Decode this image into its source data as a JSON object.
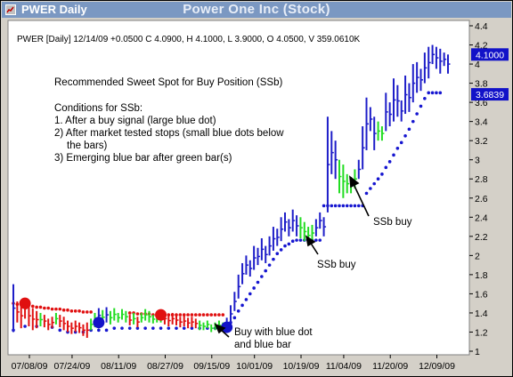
{
  "window": {
    "title": "PWER Daily"
  },
  "chart_data": {
    "type": "ohlc",
    "title": "Power One Inc (Stock)",
    "info_line": "PWER [Daily] 12/14/09 +0.0500 C 4.0900, H 4.1000, L 3.9000, O 4.0500, V 359.0610K",
    "ylim": [
      1.0,
      4.4
    ],
    "y_ticks": [
      1,
      1.2,
      1.4,
      1.6,
      1.8,
      2,
      2.2,
      2.4,
      2.6,
      2.8,
      3,
      3.2,
      3.4,
      3.6,
      3.8,
      4,
      4.2,
      4.4
    ],
    "x_ticks": [
      "07/08/09",
      "07/24/09",
      "08/11/09",
      "08/27/09",
      "09/15/09",
      "10/01/09",
      "10/19/09",
      "11/04/09",
      "11/20/09",
      "12/09/09"
    ],
    "price_badges": [
      "4.1000",
      "3.6839"
    ],
    "price_badge_values": [
      4.1,
      3.6839
    ],
    "colors": {
      "blue": "#1e1ec8",
      "green": "#22dd22",
      "red": "#e01010",
      "dots": "#1616d0",
      "badge": "#1212c8"
    },
    "bars": [
      [
        1.7,
        1.2,
        "b"
      ],
      [
        1.52,
        1.3,
        "r"
      ],
      [
        1.5,
        1.24,
        "r"
      ],
      [
        1.55,
        1.34,
        "r"
      ],
      [
        1.48,
        1.26,
        "r"
      ],
      [
        1.45,
        1.22,
        "r"
      ],
      [
        1.42,
        1.24,
        "r"
      ],
      [
        1.4,
        1.26,
        "g"
      ],
      [
        1.38,
        1.25,
        "r"
      ],
      [
        1.34,
        1.22,
        "r"
      ],
      [
        1.36,
        1.24,
        "r"
      ],
      [
        1.4,
        1.28,
        "g"
      ],
      [
        1.38,
        1.25,
        "r"
      ],
      [
        1.36,
        1.22,
        "r"
      ],
      [
        1.32,
        1.2,
        "r"
      ],
      [
        1.3,
        1.18,
        "r"
      ],
      [
        1.32,
        1.2,
        "r"
      ],
      [
        1.3,
        1.19,
        "r"
      ],
      [
        1.28,
        1.16,
        "r"
      ],
      [
        1.3,
        1.14,
        "r"
      ],
      [
        1.34,
        1.22,
        "g"
      ],
      [
        1.4,
        1.25,
        "g"
      ],
      [
        1.45,
        1.3,
        "b"
      ],
      [
        1.43,
        1.28,
        "g"
      ],
      [
        1.46,
        1.3,
        "b"
      ],
      [
        1.42,
        1.28,
        "g"
      ],
      [
        1.45,
        1.32,
        "g"
      ],
      [
        1.4,
        1.3,
        "g"
      ],
      [
        1.44,
        1.33,
        "g"
      ],
      [
        1.42,
        1.3,
        "g"
      ],
      [
        1.38,
        1.27,
        "r"
      ],
      [
        1.4,
        1.28,
        "g"
      ],
      [
        1.36,
        1.25,
        "r"
      ],
      [
        1.4,
        1.3,
        "g"
      ],
      [
        1.44,
        1.32,
        "g"
      ],
      [
        1.42,
        1.3,
        "g"
      ],
      [
        1.38,
        1.29,
        "g"
      ],
      [
        1.4,
        1.3,
        "g"
      ],
      [
        1.42,
        1.3,
        "g"
      ],
      [
        1.4,
        1.28,
        "r"
      ],
      [
        1.38,
        1.26,
        "r"
      ],
      [
        1.4,
        1.28,
        "r"
      ],
      [
        1.38,
        1.27,
        "r"
      ],
      [
        1.36,
        1.25,
        "r"
      ],
      [
        1.37,
        1.26,
        "r"
      ],
      [
        1.35,
        1.24,
        "r"
      ],
      [
        1.36,
        1.25,
        "r"
      ],
      [
        1.34,
        1.24,
        "r"
      ],
      [
        1.32,
        1.22,
        "g"
      ],
      [
        1.3,
        1.22,
        "g"
      ],
      [
        1.32,
        1.24,
        "g"
      ],
      [
        1.28,
        1.2,
        "g"
      ],
      [
        1.3,
        1.22,
        "g"
      ],
      [
        1.32,
        1.22,
        "g"
      ],
      [
        1.3,
        1.24,
        "g"
      ],
      [
        1.35,
        1.25,
        "b"
      ],
      [
        1.48,
        1.3,
        "b"
      ],
      [
        1.62,
        1.42,
        "b"
      ],
      [
        1.8,
        1.55,
        "b"
      ],
      [
        1.92,
        1.7,
        "b"
      ],
      [
        2.0,
        1.8,
        "b"
      ],
      [
        1.95,
        1.78,
        "b"
      ],
      [
        2.1,
        1.85,
        "b"
      ],
      [
        2.08,
        1.9,
        "b"
      ],
      [
        2.18,
        1.95,
        "b"
      ],
      [
        2.1,
        1.92,
        "b"
      ],
      [
        2.2,
        2.0,
        "b"
      ],
      [
        2.3,
        2.05,
        "b"
      ],
      [
        2.28,
        2.1,
        "b"
      ],
      [
        2.4,
        2.15,
        "b"
      ],
      [
        2.45,
        2.25,
        "b"
      ],
      [
        2.38,
        2.2,
        "b"
      ],
      [
        2.48,
        2.25,
        "b"
      ],
      [
        2.42,
        2.2,
        "b"
      ],
      [
        2.4,
        2.18,
        "g"
      ],
      [
        2.35,
        2.15,
        "g"
      ],
      [
        2.3,
        2.12,
        "g"
      ],
      [
        2.32,
        2.15,
        "g"
      ],
      [
        2.38,
        2.2,
        "b"
      ],
      [
        2.45,
        2.28,
        "b"
      ],
      [
        2.4,
        2.2,
        "b"
      ],
      [
        3.45,
        2.45,
        "b"
      ],
      [
        3.3,
        2.85,
        "b"
      ],
      [
        3.2,
        2.8,
        "b"
      ],
      [
        3.0,
        2.65,
        "g"
      ],
      [
        2.95,
        2.6,
        "g"
      ],
      [
        2.85,
        2.65,
        "g"
      ],
      [
        2.82,
        2.65,
        "g"
      ],
      [
        2.9,
        2.7,
        "g"
      ],
      [
        3.0,
        2.8,
        "b"
      ],
      [
        3.35,
        2.9,
        "b"
      ],
      [
        3.65,
        3.1,
        "b"
      ],
      [
        3.55,
        3.3,
        "b"
      ],
      [
        3.45,
        3.1,
        "b"
      ],
      [
        3.4,
        3.2,
        "g"
      ],
      [
        3.35,
        3.2,
        "g"
      ],
      [
        3.7,
        3.3,
        "b"
      ],
      [
        3.6,
        3.35,
        "b"
      ],
      [
        3.85,
        3.4,
        "b"
      ],
      [
        3.78,
        3.45,
        "b"
      ],
      [
        3.62,
        3.4,
        "b"
      ],
      [
        3.88,
        3.48,
        "b"
      ],
      [
        3.8,
        3.5,
        "b"
      ],
      [
        4.0,
        3.6,
        "b"
      ],
      [
        4.02,
        3.7,
        "b"
      ],
      [
        3.95,
        3.72,
        "b"
      ],
      [
        4.12,
        3.8,
        "b"
      ],
      [
        4.18,
        3.85,
        "b"
      ],
      [
        4.2,
        4.0,
        "b"
      ],
      [
        4.18,
        3.95,
        "b"
      ],
      [
        4.16,
        3.9,
        "b"
      ],
      [
        4.12,
        3.98,
        "b"
      ],
      [
        4.1,
        3.9,
        "b"
      ]
    ],
    "stop_dots": [
      [
        0,
        1.22
      ],
      [
        3,
        1.26
      ],
      [
        6,
        1.26
      ],
      [
        10,
        1.25
      ],
      [
        12,
        1.22
      ],
      [
        14,
        1.2
      ],
      [
        16,
        1.2
      ],
      [
        18,
        1.2
      ],
      [
        20,
        1.22
      ],
      [
        22,
        1.22
      ],
      [
        24,
        1.22
      ],
      [
        26,
        1.24
      ],
      [
        28,
        1.24
      ],
      [
        30,
        1.24
      ],
      [
        32,
        1.24
      ],
      [
        34,
        1.24
      ],
      [
        36,
        1.24
      ],
      [
        38,
        1.24
      ],
      [
        40,
        1.24
      ],
      [
        42,
        1.24
      ],
      [
        44,
        1.24
      ],
      [
        46,
        1.24
      ],
      [
        48,
        1.24
      ],
      [
        50,
        1.24
      ],
      [
        52,
        1.24
      ],
      [
        54,
        1.24
      ],
      [
        56,
        1.3
      ],
      [
        57,
        1.35
      ],
      [
        58,
        1.42
      ],
      [
        59,
        1.48
      ],
      [
        60,
        1.54
      ],
      [
        61,
        1.6
      ],
      [
        62,
        1.66
      ],
      [
        63,
        1.72
      ],
      [
        64,
        1.78
      ],
      [
        65,
        1.84
      ],
      [
        66,
        1.9
      ],
      [
        67,
        1.96
      ],
      [
        68,
        2.02
      ],
      [
        69,
        2.06
      ],
      [
        70,
        2.1
      ],
      [
        71,
        2.12
      ],
      [
        72,
        2.15
      ],
      [
        73,
        2.16
      ],
      [
        74,
        2.16
      ],
      [
        75,
        2.16
      ],
      [
        76,
        2.16
      ],
      [
        77,
        2.16
      ],
      [
        78,
        2.16
      ],
      [
        79,
        2.16
      ],
      [
        80,
        2.52
      ],
      [
        81,
        2.52
      ],
      [
        82,
        2.52
      ],
      [
        83,
        2.52
      ],
      [
        84,
        2.52
      ],
      [
        85,
        2.52
      ],
      [
        86,
        2.52
      ],
      [
        87,
        2.52
      ],
      [
        88,
        2.52
      ],
      [
        89,
        2.52
      ],
      [
        90,
        2.52
      ],
      [
        91,
        2.65
      ],
      [
        92,
        2.7
      ],
      [
        93,
        2.75
      ],
      [
        94,
        2.8
      ],
      [
        95,
        2.85
      ],
      [
        96,
        2.92
      ],
      [
        97,
        2.98
      ],
      [
        98,
        3.05
      ],
      [
        99,
        3.12
      ],
      [
        100,
        3.18
      ],
      [
        101,
        3.25
      ],
      [
        102,
        3.32
      ],
      [
        103,
        3.4
      ],
      [
        104,
        3.48
      ],
      [
        105,
        3.56
      ],
      [
        106,
        3.64
      ],
      [
        107,
        3.7
      ],
      [
        108,
        3.7
      ],
      [
        109,
        3.7
      ],
      [
        110,
        3.7
      ]
    ],
    "red_dots": [
      [
        0,
        1.5
      ],
      [
        1,
        1.49
      ],
      [
        2,
        1.49
      ],
      [
        3,
        1.48
      ],
      [
        4,
        1.48
      ],
      [
        5,
        1.47
      ],
      [
        6,
        1.46
      ],
      [
        7,
        1.46
      ],
      [
        8,
        1.45
      ],
      [
        9,
        1.45
      ],
      [
        10,
        1.44
      ],
      [
        11,
        1.44
      ],
      [
        12,
        1.44
      ],
      [
        13,
        1.43
      ],
      [
        14,
        1.43
      ],
      [
        15,
        1.42
      ],
      [
        16,
        1.42
      ],
      [
        17,
        1.42
      ],
      [
        18,
        1.41
      ],
      [
        19,
        1.41
      ],
      [
        20,
        1.41
      ],
      [
        30,
        1.4
      ],
      [
        31,
        1.4
      ],
      [
        32,
        1.39
      ],
      [
        33,
        1.39
      ],
      [
        34,
        1.39
      ],
      [
        35,
        1.39
      ],
      [
        36,
        1.38
      ],
      [
        37,
        1.38
      ],
      [
        38,
        1.38
      ],
      [
        39,
        1.38
      ],
      [
        40,
        1.38
      ],
      [
        41,
        1.38
      ],
      [
        42,
        1.38
      ],
      [
        43,
        1.38
      ],
      [
        44,
        1.38
      ],
      [
        45,
        1.38
      ],
      [
        46,
        1.38
      ],
      [
        47,
        1.38
      ],
      [
        48,
        1.38
      ],
      [
        49,
        1.38
      ],
      [
        50,
        1.38
      ],
      [
        51,
        1.38
      ],
      [
        52,
        1.38
      ],
      [
        53,
        1.38
      ],
      [
        54,
        1.38
      ]
    ],
    "signal_dots": [
      {
        "i": 3,
        "price": 1.5,
        "color": "red"
      },
      {
        "i": 22,
        "price": 1.3,
        "color": "blue"
      },
      {
        "i": 38,
        "price": 1.38,
        "color": "red"
      },
      {
        "i": 55,
        "price": 1.25,
        "color": "blue"
      }
    ],
    "annotations": {
      "heading": "Recommended Sweet Spot for Buy Position (SSb)",
      "conditions_title": "Conditions for SSb:",
      "cond1": "1. After a buy signal (large blue dot)",
      "cond2a": "2) After market tested stops (small blue dots below",
      "cond2b": "the bars)",
      "cond3": "3) Emerging blue bar after green bar(s)",
      "ssb_buy_1": "SSb buy",
      "ssb_buy_2": "SSb buy",
      "buy_line1": "Buy with blue dot",
      "buy_line2": "and blue bar"
    }
  }
}
